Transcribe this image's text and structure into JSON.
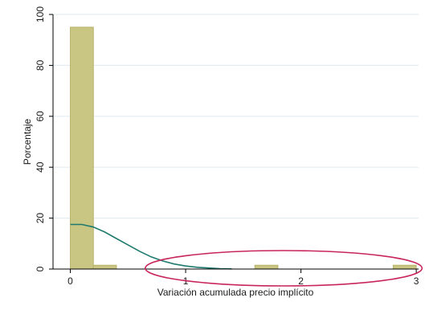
{
  "chart_data": {
    "type": "bar",
    "xlabel": "Variación acumulada precio implícito",
    "ylabel": "Porcentaje",
    "xlim": [
      -0.15,
      3.02
    ],
    "ylim": [
      0,
      100
    ],
    "grid": true,
    "x_ticks": [
      0,
      1,
      2,
      3
    ],
    "y_ticks": [
      0,
      20,
      40,
      60,
      80,
      100
    ],
    "bins": [
      {
        "x0": 0.0,
        "x1": 0.2,
        "value": 95
      },
      {
        "x0": 0.2,
        "x1": 0.4,
        "value": 1.5
      },
      {
        "x0": 1.6,
        "x1": 1.8,
        "value": 1.5
      },
      {
        "x0": 2.8,
        "x1": 3.0,
        "value": 1.5
      }
    ],
    "density_curve": {
      "x": [
        0,
        0.1,
        0.2,
        0.3,
        0.4,
        0.5,
        0.6,
        0.7,
        0.8,
        0.9,
        1.0,
        1.1,
        1.2,
        1.3,
        1.4
      ],
      "y": [
        17.5,
        17.5,
        16.5,
        14.5,
        12.0,
        9.5,
        7.0,
        4.8,
        3.2,
        2.0,
        1.2,
        0.7,
        0.4,
        0.15,
        0.05
      ]
    },
    "colors": {
      "bar_fill": "#c9c582",
      "bar_stroke": "#b8b46c",
      "curve": "#1f7a6e",
      "grid": "#e4ecf1",
      "annotation": "#c8265a"
    },
    "annotation": {
      "shape": "ellipse",
      "x_range": [
        0.65,
        3.05
      ]
    }
  }
}
